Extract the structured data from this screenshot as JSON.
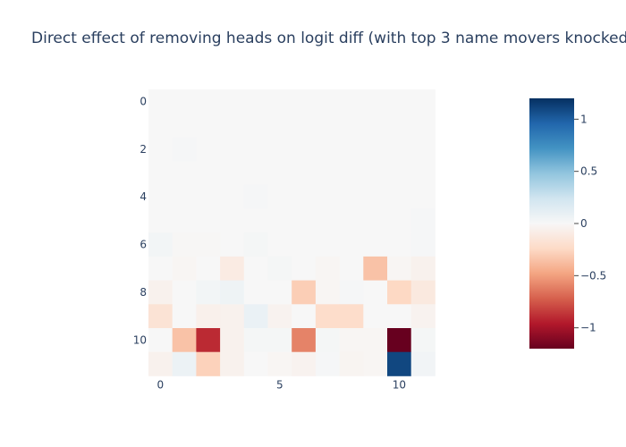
{
  "chart_data": {
    "type": "heatmap",
    "title": "Direct effect of removing heads on logit diff (with top 3 name movers knocked",
    "xlabel": "",
    "ylabel": "",
    "x": [
      0,
      1,
      2,
      3,
      4,
      5,
      6,
      7,
      8,
      9,
      10,
      11
    ],
    "y": [
      0,
      1,
      2,
      3,
      4,
      5,
      6,
      7,
      8,
      9,
      10,
      11
    ],
    "x_ticks": [
      0,
      5,
      10
    ],
    "y_ticks": [
      0,
      2,
      4,
      6,
      8,
      10
    ],
    "y_reversed": true,
    "colorscale": "RdBu",
    "zmin": -1.2,
    "zmax": 1.2,
    "colorbar_ticks": [
      {
        "value": 1,
        "label": "1"
      },
      {
        "value": 0.5,
        "label": "0.5"
      },
      {
        "value": 0,
        "label": "0"
      },
      {
        "value": -0.5,
        "label": "−0.5"
      },
      {
        "value": -1,
        "label": "−1"
      }
    ],
    "z": [
      [
        0,
        0,
        0,
        0,
        0,
        0,
        0,
        0,
        0,
        0,
        0,
        0
      ],
      [
        0,
        0,
        0,
        0,
        0,
        0,
        0,
        0,
        0,
        0,
        0,
        0
      ],
      [
        0,
        0.01,
        0,
        0,
        0,
        0,
        0,
        0,
        0,
        0,
        0,
        0
      ],
      [
        0,
        0,
        0,
        0,
        0,
        0,
        0,
        0,
        0,
        0,
        0,
        0
      ],
      [
        0,
        0,
        0,
        0,
        0.01,
        0,
        0,
        0,
        0,
        0,
        0,
        0
      ],
      [
        0,
        0,
        0,
        0,
        0,
        0,
        0,
        0,
        0,
        0,
        0,
        0.01
      ],
      [
        0.03,
        -0.01,
        -0.01,
        0,
        0.02,
        0,
        0,
        0,
        0,
        0,
        0,
        0.01
      ],
      [
        0,
        -0.02,
        0,
        -0.1,
        0,
        0.02,
        0,
        -0.02,
        0,
        -0.35,
        -0.02,
        -0.05
      ],
      [
        -0.05,
        0,
        0.03,
        0.06,
        0,
        0,
        -0.3,
        -0.02,
        0.01,
        0,
        -0.25,
        -0.12
      ],
      [
        -0.17,
        0,
        -0.06,
        -0.05,
        0.08,
        -0.04,
        0,
        -0.22,
        -0.22,
        0,
        0,
        -0.04
      ],
      [
        0,
        -0.35,
        -0.9,
        -0.05,
        0.02,
        0.02,
        -0.6,
        0.02,
        -0.02,
        -0.02,
        -1.2,
        0.02
      ],
      [
        -0.05,
        0.07,
        -0.28,
        -0.05,
        0,
        -0.02,
        -0.04,
        0.01,
        -0.03,
        -0.02,
        1.1,
        0.04
      ]
    ]
  }
}
